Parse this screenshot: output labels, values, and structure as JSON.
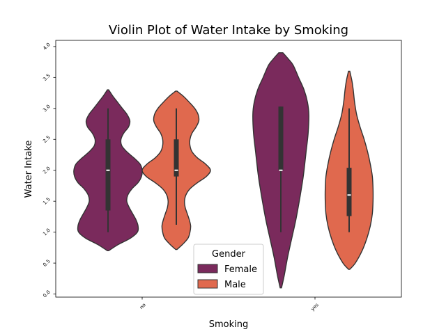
{
  "chart_data": {
    "type": "violin",
    "title": "Violin Plot of Water Intake by Smoking",
    "xlabel": "Smoking",
    "ylabel": "Water Intake",
    "categories": [
      "no",
      "yes"
    ],
    "ylim": [
      -0.05,
      4.1
    ],
    "yticks": [
      0.0,
      0.5,
      1.0,
      1.5,
      2.0,
      2.5,
      3.0,
      3.5,
      4.0
    ],
    "ytick_labels": [
      "0.0",
      "0.5",
      "1.0",
      "1.5",
      "2.0",
      "2.5",
      "3.0",
      "3.5",
      "4.0"
    ],
    "grid": false,
    "legend": {
      "title": "Gender",
      "placement": "lower center"
    },
    "series": [
      {
        "name": "Female",
        "color": "#7a2a5c",
        "violins": [
          {
            "category": "no",
            "min": 1.0,
            "q1": 1.35,
            "median": 2.0,
            "q3": 2.5,
            "max": 3.0,
            "extent": [
              0.7,
              3.3
            ],
            "density": [
              [
                0.7,
                0.02
              ],
              [
                0.8,
                0.3
              ],
              [
                0.9,
                0.65
              ],
              [
                1.0,
                0.86
              ],
              [
                1.1,
                0.88
              ],
              [
                1.2,
                0.82
              ],
              [
                1.3,
                0.72
              ],
              [
                1.4,
                0.62
              ],
              [
                1.5,
                0.55
              ],
              [
                1.6,
                0.58
              ],
              [
                1.7,
                0.7
              ],
              [
                1.8,
                0.88
              ],
              [
                1.9,
                0.98
              ],
              [
                2.0,
                1.0
              ],
              [
                2.1,
                0.94
              ],
              [
                2.2,
                0.76
              ],
              [
                2.3,
                0.55
              ],
              [
                2.4,
                0.4
              ],
              [
                2.5,
                0.38
              ],
              [
                2.6,
                0.46
              ],
              [
                2.7,
                0.6
              ],
              [
                2.8,
                0.64
              ],
              [
                2.9,
                0.56
              ],
              [
                3.0,
                0.42
              ],
              [
                3.1,
                0.28
              ],
              [
                3.2,
                0.14
              ],
              [
                3.3,
                0.02
              ]
            ]
          },
          {
            "category": "yes",
            "min": 1.0,
            "q1": 2.0,
            "median": 2.0,
            "q3": 3.03,
            "max": 3.03,
            "extent": [
              0.1,
              3.9
            ],
            "density": [
              [
                0.1,
                0.02
              ],
              [
                0.3,
                0.1
              ],
              [
                0.6,
                0.2
              ],
              [
                0.9,
                0.32
              ],
              [
                1.2,
                0.44
              ],
              [
                1.5,
                0.54
              ],
              [
                1.8,
                0.63
              ],
              [
                2.0,
                0.68
              ],
              [
                2.3,
                0.74
              ],
              [
                2.6,
                0.8
              ],
              [
                2.9,
                0.82
              ],
              [
                3.1,
                0.78
              ],
              [
                3.3,
                0.68
              ],
              [
                3.5,
                0.52
              ],
              [
                3.7,
                0.36
              ],
              [
                3.8,
                0.22
              ],
              [
                3.9,
                0.06
              ]
            ]
          }
        ]
      },
      {
        "name": "Male",
        "color": "#e0694e",
        "violins": [
          {
            "category": "no",
            "min": 1.12,
            "q1": 1.9,
            "median": 2.0,
            "q3": 2.5,
            "max": 3.0,
            "extent": [
              0.72,
              3.28
            ],
            "density": [
              [
                0.72,
                0.02
              ],
              [
                0.8,
                0.18
              ],
              [
                0.9,
                0.34
              ],
              [
                1.0,
                0.4
              ],
              [
                1.1,
                0.42
              ],
              [
                1.2,
                0.38
              ],
              [
                1.3,
                0.32
              ],
              [
                1.4,
                0.26
              ],
              [
                1.5,
                0.24
              ],
              [
                1.6,
                0.28
              ],
              [
                1.7,
                0.4
              ],
              [
                1.8,
                0.62
              ],
              [
                1.9,
                0.88
              ],
              [
                2.0,
                1.0
              ],
              [
                2.1,
                0.86
              ],
              [
                2.2,
                0.62
              ],
              [
                2.3,
                0.46
              ],
              [
                2.4,
                0.4
              ],
              [
                2.5,
                0.4
              ],
              [
                2.6,
                0.46
              ],
              [
                2.7,
                0.58
              ],
              [
                2.8,
                0.66
              ],
              [
                2.9,
                0.64
              ],
              [
                3.0,
                0.54
              ],
              [
                3.1,
                0.38
              ],
              [
                3.2,
                0.2
              ],
              [
                3.28,
                0.02
              ]
            ]
          },
          {
            "category": "yes",
            "min": 1.0,
            "q1": 1.26,
            "median": 1.6,
            "q3": 2.04,
            "max": 3.0,
            "extent": [
              0.4,
              3.6
            ],
            "density": [
              [
                0.4,
                0.02
              ],
              [
                0.5,
                0.18
              ],
              [
                0.7,
                0.38
              ],
              [
                0.9,
                0.52
              ],
              [
                1.1,
                0.62
              ],
              [
                1.3,
                0.68
              ],
              [
                1.5,
                0.7
              ],
              [
                1.7,
                0.7
              ],
              [
                1.9,
                0.68
              ],
              [
                2.1,
                0.62
              ],
              [
                2.3,
                0.54
              ],
              [
                2.5,
                0.44
              ],
              [
                2.7,
                0.32
              ],
              [
                2.9,
                0.22
              ],
              [
                3.1,
                0.16
              ],
              [
                3.3,
                0.12
              ],
              [
                3.45,
                0.08
              ],
              [
                3.6,
                0.02
              ]
            ]
          }
        ]
      }
    ]
  }
}
